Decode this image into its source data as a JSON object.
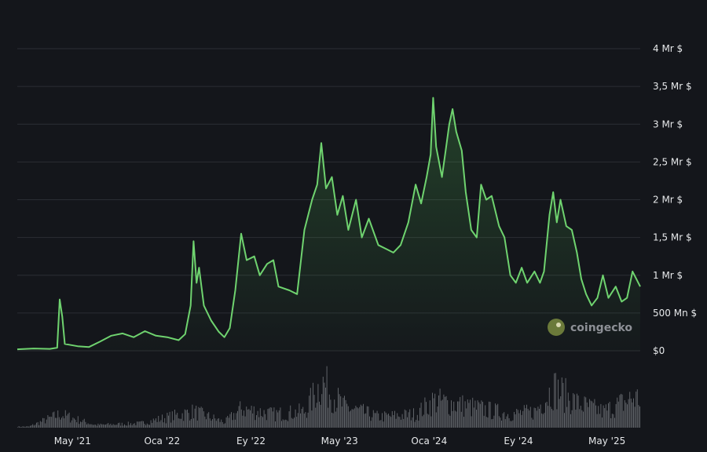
{
  "chart_data": {
    "type": "area",
    "title": "",
    "xlabel": "",
    "ylabel": "",
    "y_unit": "USD",
    "ylim": [
      0,
      4000000000
    ],
    "y_ticks": [
      {
        "value": 0,
        "label": "$0"
      },
      {
        "value": 500000000,
        "label": "500 Mn $"
      },
      {
        "value": 1000000000,
        "label": "1 Mr $"
      },
      {
        "value": 1500000000,
        "label": "1,5 Mr $"
      },
      {
        "value": 2000000000,
        "label": "2 Mr $"
      },
      {
        "value": 2500000000,
        "label": "2,5 Mr $"
      },
      {
        "value": 3000000000,
        "label": "3 Mr $"
      },
      {
        "value": 3500000000,
        "label": "3,5 Mr $"
      },
      {
        "value": 4000000000,
        "label": "4 Mr $"
      }
    ],
    "x_range": [
      "2020-12-01",
      "2025-07-31"
    ],
    "x_ticks": [
      {
        "date": "2021-05-01",
        "label": "May '21"
      },
      {
        "date": "2022-01-01",
        "label": "Oca '22"
      },
      {
        "date": "2022-09-01",
        "label": "Ey '22"
      },
      {
        "date": "2023-05-01",
        "label": "May '23"
      },
      {
        "date": "2024-01-01",
        "label": "Oca '24"
      },
      {
        "date": "2024-09-01",
        "label": "Ey '24"
      },
      {
        "date": "2025-05-01",
        "label": "May '25"
      }
    ],
    "grid": true,
    "line_color": "#6fd36f",
    "volume_color": "#5f6368",
    "series": [
      {
        "values": [
          [
            "2020-12-01",
            20000000
          ],
          [
            "2021-01-15",
            30000000
          ],
          [
            "2021-02-28",
            25000000
          ],
          [
            "2021-03-20",
            40000000
          ],
          [
            "2021-03-27",
            680000000
          ],
          [
            "2021-04-03",
            450000000
          ],
          [
            "2021-04-10",
            90000000
          ],
          [
            "2021-05-15",
            60000000
          ],
          [
            "2021-06-15",
            50000000
          ],
          [
            "2021-07-15",
            120000000
          ],
          [
            "2021-08-15",
            200000000
          ],
          [
            "2021-09-15",
            230000000
          ],
          [
            "2021-10-15",
            180000000
          ],
          [
            "2021-11-15",
            260000000
          ],
          [
            "2021-12-15",
            200000000
          ],
          [
            "2022-01-15",
            180000000
          ],
          [
            "2022-02-15",
            140000000
          ],
          [
            "2022-03-05",
            220000000
          ],
          [
            "2022-03-20",
            600000000
          ],
          [
            "2022-03-28",
            1450000000
          ],
          [
            "2022-04-05",
            900000000
          ],
          [
            "2022-04-12",
            1100000000
          ],
          [
            "2022-04-25",
            600000000
          ],
          [
            "2022-05-15",
            400000000
          ],
          [
            "2022-06-05",
            250000000
          ],
          [
            "2022-06-20",
            180000000
          ],
          [
            "2022-07-05",
            300000000
          ],
          [
            "2022-07-20",
            800000000
          ],
          [
            "2022-08-05",
            1550000000
          ],
          [
            "2022-08-20",
            1200000000
          ],
          [
            "2022-09-10",
            1250000000
          ],
          [
            "2022-09-25",
            1000000000
          ],
          [
            "2022-10-15",
            1150000000
          ],
          [
            "2022-11-01",
            1200000000
          ],
          [
            "2022-11-15",
            850000000
          ],
          [
            "2022-12-15",
            800000000
          ],
          [
            "2023-01-05",
            750000000
          ],
          [
            "2023-01-25",
            1600000000
          ],
          [
            "2023-02-15",
            2000000000
          ],
          [
            "2023-03-01",
            2200000000
          ],
          [
            "2023-03-12",
            2750000000
          ],
          [
            "2023-03-25",
            2150000000
          ],
          [
            "2023-04-10",
            2300000000
          ],
          [
            "2023-04-25",
            1800000000
          ],
          [
            "2023-05-10",
            2050000000
          ],
          [
            "2023-05-25",
            1600000000
          ],
          [
            "2023-06-15",
            2000000000
          ],
          [
            "2023-07-01",
            1500000000
          ],
          [
            "2023-07-20",
            1750000000
          ],
          [
            "2023-08-15",
            1400000000
          ],
          [
            "2023-09-05",
            1350000000
          ],
          [
            "2023-09-25",
            1300000000
          ],
          [
            "2023-10-15",
            1400000000
          ],
          [
            "2023-11-05",
            1700000000
          ],
          [
            "2023-11-25",
            2200000000
          ],
          [
            "2023-12-10",
            1950000000
          ],
          [
            "2023-12-25",
            2300000000
          ],
          [
            "2024-01-05",
            2600000000
          ],
          [
            "2024-01-12",
            3350000000
          ],
          [
            "2024-01-20",
            2700000000
          ],
          [
            "2024-02-05",
            2300000000
          ],
          [
            "2024-02-15",
            2650000000
          ],
          [
            "2024-02-25",
            3000000000
          ],
          [
            "2024-03-05",
            3200000000
          ],
          [
            "2024-03-15",
            2900000000
          ],
          [
            "2024-03-30",
            2650000000
          ],
          [
            "2024-04-10",
            2100000000
          ],
          [
            "2024-04-25",
            1600000000
          ],
          [
            "2024-05-10",
            1500000000
          ],
          [
            "2024-05-22",
            2200000000
          ],
          [
            "2024-06-05",
            2000000000
          ],
          [
            "2024-06-20",
            2050000000
          ],
          [
            "2024-07-10",
            1650000000
          ],
          [
            "2024-07-25",
            1500000000
          ],
          [
            "2024-08-10",
            1000000000
          ],
          [
            "2024-08-25",
            900000000
          ],
          [
            "2024-09-10",
            1100000000
          ],
          [
            "2024-09-25",
            900000000
          ],
          [
            "2024-10-15",
            1050000000
          ],
          [
            "2024-10-30",
            900000000
          ],
          [
            "2024-11-10",
            1050000000
          ],
          [
            "2024-11-25",
            1800000000
          ],
          [
            "2024-12-05",
            2100000000
          ],
          [
            "2024-12-15",
            1700000000
          ],
          [
            "2024-12-25",
            2000000000
          ],
          [
            "2025-01-10",
            1650000000
          ],
          [
            "2025-01-25",
            1600000000
          ],
          [
            "2025-02-08",
            1300000000
          ],
          [
            "2025-02-20",
            950000000
          ],
          [
            "2025-03-05",
            750000000
          ],
          [
            "2025-03-20",
            600000000
          ],
          [
            "2025-04-05",
            700000000
          ],
          [
            "2025-04-20",
            1000000000
          ],
          [
            "2025-05-05",
            700000000
          ],
          [
            "2025-05-25",
            850000000
          ],
          [
            "2025-06-10",
            650000000
          ],
          [
            "2025-06-25",
            700000000
          ],
          [
            "2025-07-10",
            1050000000
          ],
          [
            "2025-07-31",
            850000000
          ]
        ]
      }
    ],
    "volume": {
      "note_free": true,
      "values": [
        [
          "2021-01-01",
          0.02
        ],
        [
          "2021-03-27",
          0.25
        ],
        [
          "2021-07-01",
          0.05
        ],
        [
          "2021-11-01",
          0.08
        ],
        [
          "2022-03-28",
          0.3
        ],
        [
          "2022-06-20",
          0.1
        ],
        [
          "2022-08-05",
          0.35
        ],
        [
          "2022-11-01",
          0.25
        ],
        [
          "2023-01-25",
          0.3
        ],
        [
          "2023-03-12",
          0.85
        ],
        [
          "2023-05-10",
          0.4
        ],
        [
          "2023-08-15",
          0.2
        ],
        [
          "2023-11-25",
          0.25
        ],
        [
          "2024-01-12",
          0.5
        ],
        [
          "2024-03-05",
          0.45
        ],
        [
          "2024-05-22",
          0.35
        ],
        [
          "2024-08-10",
          0.25
        ],
        [
          "2024-10-15",
          0.3
        ],
        [
          "2024-12-05",
          0.75
        ],
        [
          "2025-02-08",
          0.45
        ],
        [
          "2025-04-20",
          0.3
        ],
        [
          "2025-07-10",
          0.55
        ]
      ]
    },
    "watermark": "coingecko"
  }
}
